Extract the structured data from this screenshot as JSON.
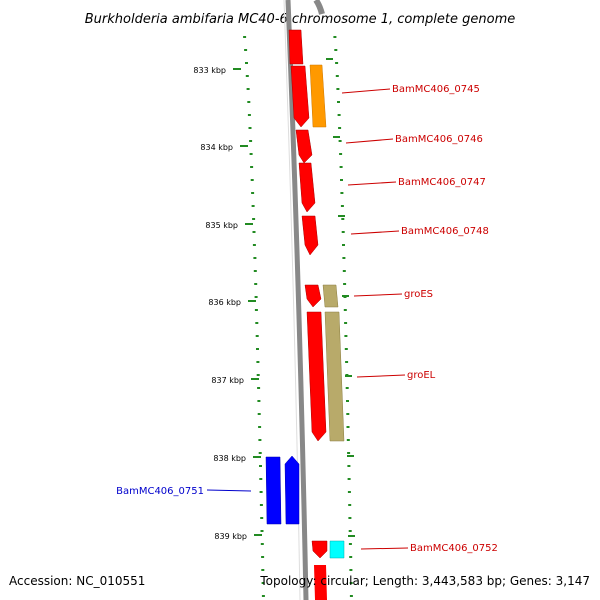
{
  "title": "Burkholderia ambifaria MC40-6 chromosome 1, complete genome",
  "footer": {
    "accession": "Accession: NC_010551",
    "summary": "Topology: circular; Length: 3,443,583 bp; Genes: 3,147"
  },
  "axis": {
    "ticks": [
      "833 kbp",
      "834 kbp",
      "835 kbp",
      "836 kbp",
      "837 kbp",
      "838 kbp",
      "839 kbp"
    ]
  },
  "genes": [
    {
      "label": "BamMC406_0745",
      "color": "#cc0000"
    },
    {
      "label": "BamMC406_0746",
      "color": "#cc0000"
    },
    {
      "label": "BamMC406_0747",
      "color": "#cc0000"
    },
    {
      "label": "BamMC406_0748",
      "color": "#cc0000"
    },
    {
      "label": "groES",
      "color": "#cc0000"
    },
    {
      "label": "groEL",
      "color": "#cc0000"
    },
    {
      "label": "BamMC406_0751",
      "color": "#0000cc"
    },
    {
      "label": "BamMC406_0752",
      "color": "#cc0000"
    }
  ],
  "colors": {
    "forward_cds": "#ff0000",
    "reverse_cds": "#0000ff",
    "backbone": "#888888",
    "tick": "#228b22",
    "orange_feature": "#ff9900",
    "olive_feature": "#b8aa6a",
    "cyan_feature": "#00ffff"
  }
}
